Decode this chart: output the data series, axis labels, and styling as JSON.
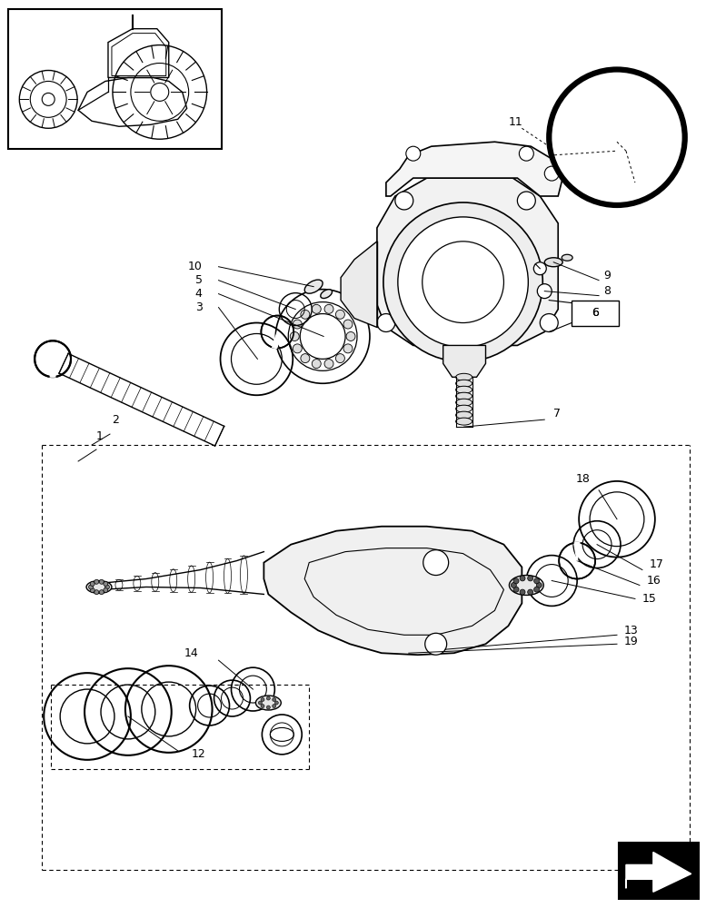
{
  "bg_color": "#ffffff",
  "line_color": "#000000",
  "fig_width": 7.88,
  "fig_height": 10.0
}
